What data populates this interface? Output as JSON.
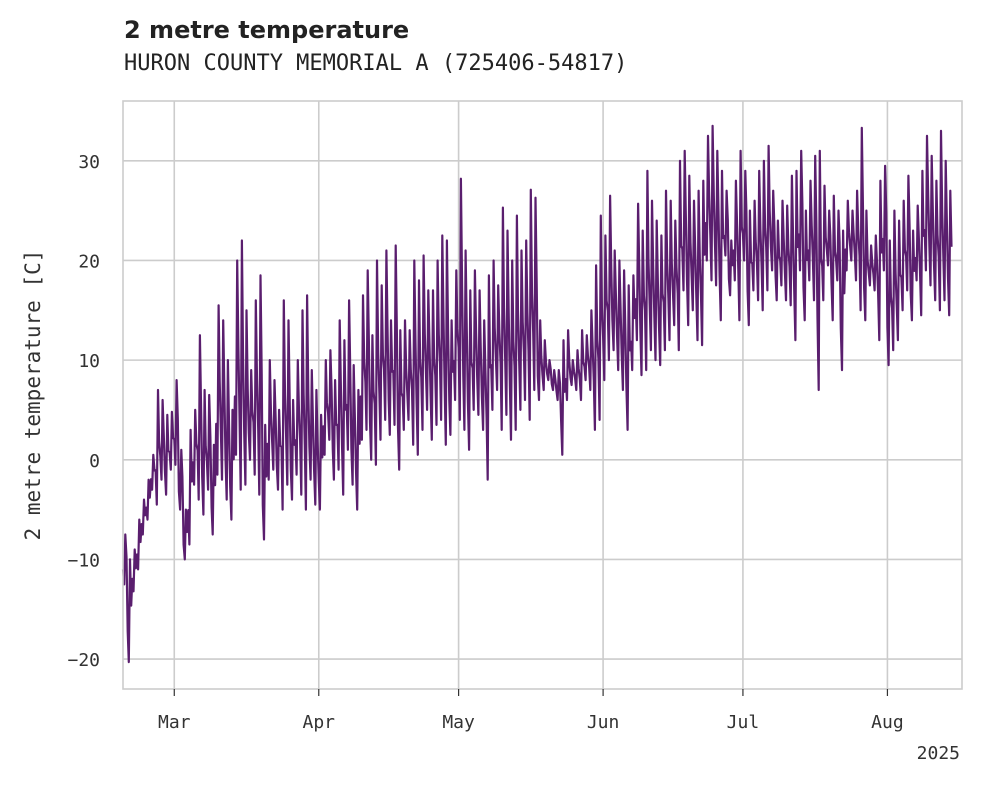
{
  "chart_data": {
    "type": "line",
    "title": "2 metre temperature",
    "subtitle": "HURON COUNTY MEMORIAL A (725406-54817)",
    "ylabel": "2 metre temperature [C]",
    "xlabel": "",
    "year_label": "2025",
    "ylim": [
      -23,
      36
    ],
    "yticks": [
      -20,
      -10,
      0,
      10,
      20,
      30
    ],
    "ytick_labels": [
      "−20",
      "−10",
      "0",
      "10",
      "20",
      "30"
    ],
    "xlim": [
      "2025-02-18",
      "2025-08-17"
    ],
    "xticks": [
      {
        "date": "2025-03-01",
        "label": "Mar"
      },
      {
        "date": "2025-04-01",
        "label": "Apr"
      },
      {
        "date": "2025-05-01",
        "label": "May"
      },
      {
        "date": "2025-06-01",
        "label": "Jun"
      },
      {
        "date": "2025-07-01",
        "label": "Jul"
      },
      {
        "date": "2025-08-01",
        "label": "Aug"
      }
    ],
    "grid": true,
    "line_color": "#5a1e6e",
    "series": [
      {
        "name": "",
        "x": [
          "2025-02-18",
          "2025-02-19",
          "2025-02-20",
          "2025-02-21",
          "2025-02-22",
          "2025-02-23",
          "2025-02-24",
          "2025-02-25",
          "2025-02-26",
          "2025-02-27",
          "2025-02-28",
          "2025-03-01",
          "2025-03-02",
          "2025-03-03",
          "2025-03-04",
          "2025-03-05",
          "2025-03-06",
          "2025-03-07",
          "2025-03-08",
          "2025-03-09",
          "2025-03-10",
          "2025-03-11",
          "2025-03-12",
          "2025-03-13",
          "2025-03-14",
          "2025-03-15",
          "2025-03-16",
          "2025-03-17",
          "2025-03-18",
          "2025-03-19",
          "2025-03-20",
          "2025-03-21",
          "2025-03-22",
          "2025-03-23",
          "2025-03-24",
          "2025-03-25",
          "2025-03-26",
          "2025-03-27",
          "2025-03-28",
          "2025-03-29",
          "2025-03-30",
          "2025-03-31",
          "2025-04-01",
          "2025-04-02",
          "2025-04-03",
          "2025-04-04",
          "2025-04-05",
          "2025-04-06",
          "2025-04-07",
          "2025-04-08",
          "2025-04-09",
          "2025-04-10",
          "2025-04-11",
          "2025-04-12",
          "2025-04-13",
          "2025-04-14",
          "2025-04-15",
          "2025-04-16",
          "2025-04-17",
          "2025-04-18",
          "2025-04-19",
          "2025-04-20",
          "2025-04-21",
          "2025-04-22",
          "2025-04-23",
          "2025-04-24",
          "2025-04-25",
          "2025-04-26",
          "2025-04-27",
          "2025-04-28",
          "2025-04-29",
          "2025-04-30",
          "2025-05-01",
          "2025-05-02",
          "2025-05-03",
          "2025-05-04",
          "2025-05-05",
          "2025-05-06",
          "2025-05-07",
          "2025-05-08",
          "2025-05-09",
          "2025-05-10",
          "2025-05-11",
          "2025-05-12",
          "2025-05-13",
          "2025-05-14",
          "2025-05-15",
          "2025-05-16",
          "2025-05-17",
          "2025-05-18",
          "2025-05-19",
          "2025-05-20",
          "2025-05-21",
          "2025-05-22",
          "2025-05-23",
          "2025-05-24",
          "2025-05-25",
          "2025-05-26",
          "2025-05-27",
          "2025-05-28",
          "2025-05-29",
          "2025-05-30",
          "2025-05-31",
          "2025-06-01",
          "2025-06-02",
          "2025-06-03",
          "2025-06-04",
          "2025-06-05",
          "2025-06-06",
          "2025-06-07",
          "2025-06-08",
          "2025-06-09",
          "2025-06-10",
          "2025-06-11",
          "2025-06-12",
          "2025-06-13",
          "2025-06-14",
          "2025-06-15",
          "2025-06-16",
          "2025-06-17",
          "2025-06-18",
          "2025-06-19",
          "2025-06-20",
          "2025-06-21",
          "2025-06-22",
          "2025-06-23",
          "2025-06-24",
          "2025-06-25",
          "2025-06-26",
          "2025-06-27",
          "2025-06-28",
          "2025-06-29",
          "2025-06-30",
          "2025-07-01",
          "2025-07-02",
          "2025-07-03",
          "2025-07-04",
          "2025-07-05",
          "2025-07-06",
          "2025-07-07",
          "2025-07-08",
          "2025-07-09",
          "2025-07-10",
          "2025-07-11",
          "2025-07-12",
          "2025-07-13",
          "2025-07-14",
          "2025-07-15",
          "2025-07-16",
          "2025-07-17",
          "2025-07-18",
          "2025-07-19",
          "2025-07-20",
          "2025-07-21",
          "2025-07-22",
          "2025-07-23",
          "2025-07-24",
          "2025-07-25",
          "2025-07-26",
          "2025-07-27",
          "2025-07-28",
          "2025-07-29",
          "2025-07-30",
          "2025-07-31",
          "2025-08-01",
          "2025-08-02",
          "2025-08-03",
          "2025-08-04",
          "2025-08-05",
          "2025-08-06",
          "2025-08-07",
          "2025-08-08",
          "2025-08-09",
          "2025-08-10",
          "2025-08-11",
          "2025-08-12",
          "2025-08-13",
          "2025-08-14",
          "2025-08-15",
          "2025-08-16"
        ],
        "y_min": [
          -12.5,
          -20.3,
          -13.2,
          -11.0,
          -7.5,
          -6.0,
          -3.0,
          -4.5,
          -2.0,
          -3.5,
          -1.0,
          -0.5,
          -5.0,
          -10.0,
          -8.5,
          -2.5,
          -4.0,
          -5.5,
          -3.0,
          -7.5,
          -1.5,
          -2.0,
          -4.0,
          -6.0,
          0.5,
          -3.0,
          -2.5,
          0.0,
          -1.5,
          -3.5,
          -8.0,
          -2.0,
          -1.0,
          -3.0,
          -5.0,
          -2.5,
          -4.0,
          -1.5,
          -3.5,
          -5.0,
          -2.0,
          -4.5,
          -5.0,
          0.5,
          2.0,
          -2.0,
          -1.0,
          -3.5,
          1.0,
          -2.5,
          -5.0,
          2.0,
          3.0,
          0.0,
          -0.5,
          2.0,
          4.0,
          2.5,
          3.5,
          -1.0,
          3.0,
          4.0,
          1.5,
          0.5,
          3.0,
          5.0,
          2.0,
          3.5,
          4.0,
          1.5,
          2.5,
          6.0,
          4.0,
          3.0,
          1.0,
          5.0,
          4.5,
          3.0,
          -2.0,
          5.0,
          7.0,
          3.0,
          4.5,
          2.0,
          3.0,
          5.0,
          6.0,
          4.0,
          7.0,
          6.0,
          7.0,
          8.0,
          7.0,
          6.0,
          0.5,
          6.0,
          7.5,
          7.0,
          6.0,
          8.0,
          7.0,
          3.0,
          4.0,
          8.0,
          10.0,
          11.0,
          9.0,
          7.0,
          3.0,
          9.0,
          12.0,
          8.5,
          9.0,
          11.0,
          10.0,
          9.5,
          11.0,
          12.0,
          13.5,
          11.0,
          17.0,
          13.5,
          15.0,
          12.0,
          11.5,
          20.0,
          18.0,
          17.5,
          14.0,
          20.5,
          16.5,
          18.0,
          14.0,
          20.0,
          13.5,
          17.0,
          16.0,
          15.0,
          17.0,
          19.0,
          16.0,
          17.5,
          16.0,
          15.5,
          12.0,
          19.0,
          14.0,
          18.0,
          16.0,
          7.0,
          16.0,
          19.5,
          14.0,
          18.0,
          9.0,
          19.0,
          20.0,
          18.0,
          15.0,
          14.0,
          17.5,
          17.0,
          12.0,
          19.0,
          9.5,
          11.0,
          12.0,
          15.0,
          17.0,
          14.0,
          18.0,
          14.5,
          19.0,
          17.5,
          16.0,
          15.0,
          16.0,
          14.5
        ],
        "y_max": [
          -7.5,
          -10.0,
          -9.0,
          -6.0,
          -4.0,
          -2.0,
          0.5,
          7.0,
          6.0,
          4.5,
          4.8,
          8.0,
          1.0,
          -5.0,
          3.0,
          5.0,
          12.5,
          7.0,
          6.5,
          1.5,
          15.5,
          14.0,
          10.0,
          5.0,
          20.0,
          22.0,
          15.0,
          9.0,
          16.0,
          18.5,
          3.5,
          10.0,
          8.0,
          5.0,
          16.0,
          14.0,
          6.0,
          10.0,
          15.0,
          16.5,
          9.0,
          7.0,
          4.5,
          10.0,
          11.0,
          8.0,
          14.0,
          12.0,
          16.0,
          9.5,
          7.0,
          16.5,
          19.0,
          12.5,
          20.0,
          17.5,
          21.0,
          14.0,
          21.5,
          13.0,
          14.0,
          13.0,
          20.0,
          18.0,
          20.5,
          17.0,
          17.0,
          20.0,
          22.5,
          22.0,
          14.0,
          19.0,
          28.2,
          21.0,
          17.0,
          19.0,
          17.0,
          14.0,
          18.5,
          20.0,
          17.5,
          25.3,
          23.0,
          20.0,
          24.5,
          21.0,
          22.0,
          27.1,
          26.3,
          14.0,
          12.0,
          10.0,
          9.0,
          9.0,
          12.0,
          13.0,
          10.0,
          11.0,
          13.0,
          12.5,
          15.0,
          19.5,
          24.5,
          22.5,
          26.5,
          21.0,
          20.0,
          19.0,
          17.5,
          18.5,
          25.7,
          23.0,
          29.0,
          26.0,
          24.0,
          22.5,
          27.0,
          26.0,
          24.0,
          30.0,
          31.0,
          28.5,
          26.0,
          27.0,
          28.0,
          32.5,
          33.5,
          31.0,
          29.0,
          27.0,
          22.0,
          28.0,
          31.0,
          29.0,
          25.0,
          26.0,
          29.0,
          30.0,
          31.5,
          27.0,
          24.0,
          26.0,
          25.5,
          28.5,
          29.0,
          31.0,
          25.0,
          28.0,
          30.5,
          31.0,
          27.5,
          25.0,
          26.5,
          25.0,
          23.0,
          26.0,
          25.0,
          27.0,
          33.3,
          25.0,
          21.5,
          22.5,
          28.0,
          29.5,
          22.0,
          25.0,
          24.0,
          26.0,
          28.5,
          23.0,
          25.5,
          29.0,
          32.5,
          30.5,
          28.0,
          33.0,
          30.0,
          27.0,
          26.0,
          25.0
        ]
      }
    ]
  }
}
